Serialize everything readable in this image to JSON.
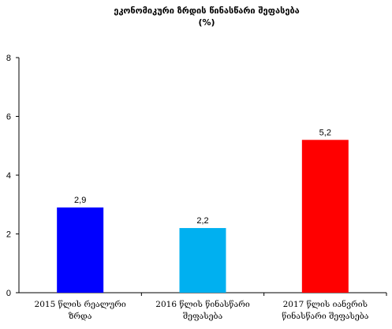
{
  "chart_data": {
    "type": "bar",
    "title": "ეკონომიკური ზრდის წინასწარი შეფასება",
    "subtitle": "(%)",
    "categories": [
      [
        "2015 წლის რეალური",
        "ზრდა"
      ],
      [
        "2016 წლის წინასწარი",
        "შეფასება"
      ],
      [
        "2017 წლის იანვრის",
        "წინასწარი შეფასება"
      ]
    ],
    "values": [
      2.9,
      2.2,
      5.2
    ],
    "data_labels": [
      "2,9",
      "2,2",
      "5,2"
    ],
    "colors": [
      "#0000ff",
      "#00b0f0",
      "#ff0000"
    ],
    "ylim": [
      0,
      8
    ],
    "yticks": [
      0,
      2,
      4,
      6,
      8
    ],
    "grid": false,
    "xlabel": "",
    "ylabel": ""
  }
}
